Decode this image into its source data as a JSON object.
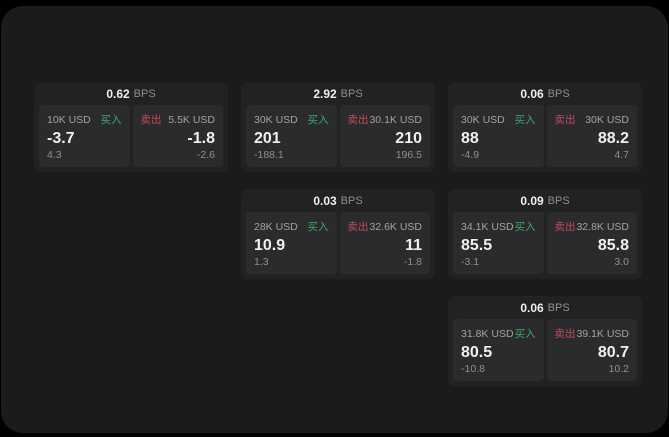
{
  "window": {
    "bps_suffix": "BPS",
    "buy_label": "买入",
    "sell_label": "卖出",
    "colors": {
      "page_bg": "#000000",
      "window_bg": "#1b1b1d",
      "card_bg": "#222224",
      "panel_bg": "#2b2b2d",
      "buy_green": "#35ad68",
      "sell_red": "#c04b5e",
      "value_white": "#f0f0f0",
      "label_gray": "#a3a3a3",
      "sub_gray": "#8f8f8f"
    }
  },
  "cards": [
    {
      "row": 1,
      "col": 1,
      "bps": "0.62",
      "buy": {
        "amount": "10K USD",
        "price": "-3.7",
        "change": "4.3"
      },
      "sell": {
        "amount": "5.5K USD",
        "price": "-1.8",
        "change": "-2.6"
      }
    },
    {
      "row": 1,
      "col": 2,
      "bps": "2.92",
      "buy": {
        "amount": "30K USD",
        "price": "201",
        "change": "-188.1"
      },
      "sell": {
        "amount": "30.1K USD",
        "price": "210",
        "change": "196.5"
      }
    },
    {
      "row": 1,
      "col": 3,
      "bps": "0.06",
      "buy": {
        "amount": "30K USD",
        "price": "88",
        "change": "-4.9"
      },
      "sell": {
        "amount": "30K USD",
        "price": "88.2",
        "change": "4.7"
      }
    },
    {
      "row": 2,
      "col": 2,
      "bps": "0.03",
      "buy": {
        "amount": "28K USD",
        "price": "10.9",
        "change": "1.3"
      },
      "sell": {
        "amount": "32.6K USD",
        "price": "11",
        "change": "-1.8"
      }
    },
    {
      "row": 2,
      "col": 3,
      "bps": "0.09",
      "buy": {
        "amount": "34.1K USD",
        "price": "85.5",
        "change": "-3.1"
      },
      "sell": {
        "amount": "32.8K USD",
        "price": "85.8",
        "change": "3.0"
      }
    },
    {
      "row": 3,
      "col": 3,
      "bps": "0.06",
      "buy": {
        "amount": "31.8K USD",
        "price": "80.5",
        "change": "-10.8"
      },
      "sell": {
        "amount": "39.1K USD",
        "price": "80.7",
        "change": "10.2"
      }
    }
  ]
}
